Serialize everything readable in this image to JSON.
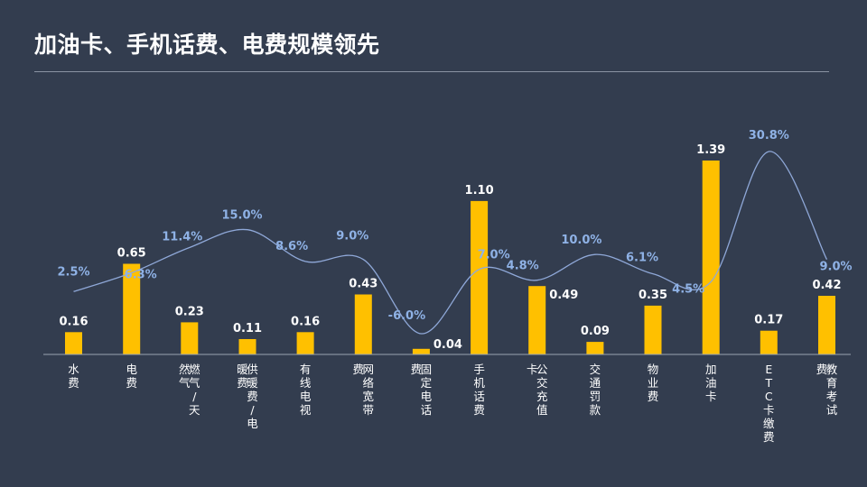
{
  "title": "加油卡、手机话费、电费规模领先",
  "colors": {
    "background": "#333d4f",
    "bar": "#ffc000",
    "line": "#8fa8d8",
    "pct_label": "#8fb2e6",
    "axis": "#9aa3b2"
  },
  "chart_data": {
    "type": "bar",
    "title": "加油卡、手机话费、电费规模领先",
    "categories": [
      "水费",
      "电费",
      "燃气/天然气",
      "供暖费/电暖费",
      "有线电视",
      "网络宽带费",
      "固定电话费",
      "手机话费",
      "公交充值卡",
      "交通罚款",
      "物业费",
      "加油卡",
      "ETC卡缴费",
      "教育考试费"
    ],
    "category_columns": [
      [
        "水费"
      ],
      [
        "电费"
      ],
      [
        "燃气/天",
        "然气"
      ],
      [
        "供暖费/电",
        "暖费"
      ],
      [
        "有线电视"
      ],
      [
        "网络宽带",
        "费"
      ],
      [
        "固定电话",
        "费"
      ],
      [
        "手机话费"
      ],
      [
        "公交充值",
        "卡"
      ],
      [
        "交通罚款"
      ],
      [
        "物业费"
      ],
      [
        "加油卡"
      ],
      [
        "ETC卡缴费"
      ],
      [
        "教育考试",
        "费"
      ]
    ],
    "series": [
      {
        "type": "bar",
        "values": [
          0.16,
          0.65,
          0.23,
          0.11,
          0.16,
          0.43,
          0.04,
          1.1,
          0.49,
          0.09,
          0.35,
          1.39,
          0.17,
          0.42
        ]
      },
      {
        "type": "line",
        "values": [
          2.5,
          6.3,
          11.4,
          15.0,
          8.6,
          9.0,
          -6.0,
          7.0,
          4.8,
          10.0,
          6.1,
          4.5,
          30.8,
          9.0
        ]
      }
    ],
    "value_labels": [
      "0.16",
      "0.65",
      "0.23",
      "0.11",
      "0.16",
      "0.43",
      "0.04",
      "1.10",
      "0.49",
      "0.09",
      "0.35",
      "1.39",
      "0.17",
      "0.42"
    ],
    "pct_labels": [
      "2.5%",
      "6.3%",
      "11.4%",
      "15.0%",
      "8.6%",
      "9.0%",
      "-6.0%",
      "7.0%",
      "4.8%",
      "10.0%",
      "6.1%",
      "4.5%",
      "30.8%",
      "9.0%"
    ],
    "bar_ylim": [
      0,
      1.45
    ],
    "line_ylim": [
      -10,
      35
    ],
    "grid": false,
    "legend": "none"
  }
}
